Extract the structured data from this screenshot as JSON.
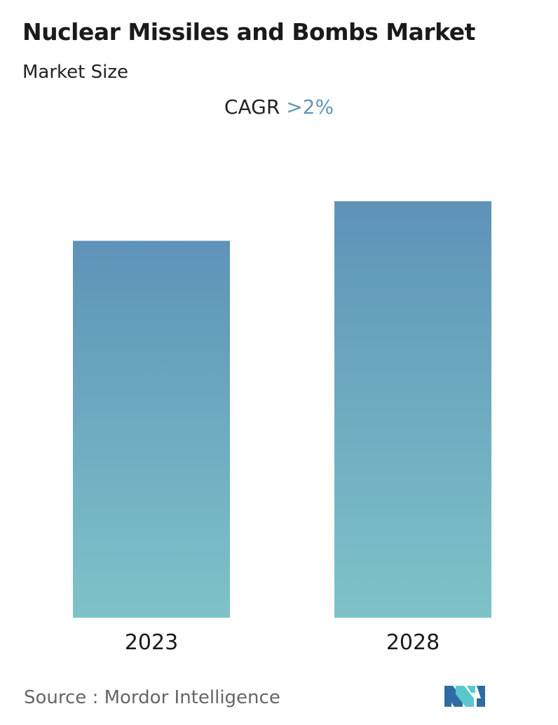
{
  "title": "Nuclear Missiles and Bombs Market",
  "subtitle": "Market Size",
  "cagr": {
    "label": "CAGR",
    "value": ">2%"
  },
  "source": {
    "label": "Source :",
    "name": "Mordor Intelligence"
  },
  "colors": {
    "bar_top": "#5e93b8",
    "bar_bottom": "#7ec3c8",
    "cagr_value": "#5f95b8",
    "logo_dark": "#2f6ca3",
    "logo_light": "#5cc6cd"
  },
  "logo_icon": "mordor-intelligence-logo-icon",
  "chart_data": {
    "type": "bar",
    "categories": [
      "2023",
      "2028"
    ],
    "values": [
      0.905,
      1.0
    ],
    "title": "",
    "xlabel": "",
    "ylabel": "",
    "ylim": [
      0,
      1.0
    ],
    "grid": false
  }
}
